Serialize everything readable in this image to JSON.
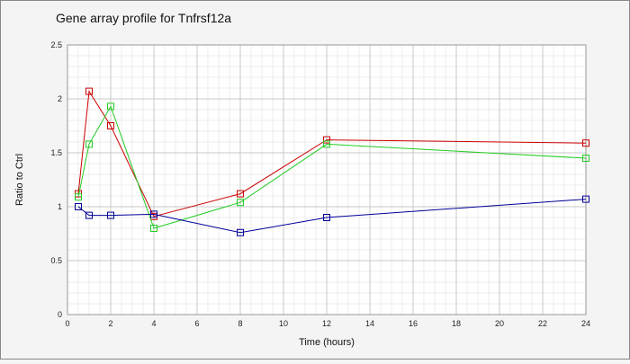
{
  "chart_data": {
    "type": "line",
    "title": "Gene array profile for Tnfrsf12a",
    "xlabel": "Time (hours)",
    "ylabel": "Ratio to Ctrl",
    "xlim": [
      0,
      24
    ],
    "ylim": [
      0,
      2.5
    ],
    "xticks": [
      0,
      2,
      4,
      6,
      8,
      10,
      12,
      14,
      16,
      18,
      20,
      22,
      24
    ],
    "yticks": [
      0,
      0.5,
      1,
      1.5,
      2,
      2.5
    ],
    "grid": true,
    "legend": "none",
    "series": [
      {
        "color": "#cc0000",
        "points": [
          [
            0.5,
            1.12
          ],
          [
            1,
            2.07
          ],
          [
            2,
            1.75
          ],
          [
            4,
            0.91
          ],
          [
            8,
            1.12
          ],
          [
            12,
            1.62
          ],
          [
            24,
            1.59
          ]
        ]
      },
      {
        "color": "#22cc22",
        "points": [
          [
            0.5,
            1.09
          ],
          [
            1,
            1.58
          ],
          [
            2,
            1.93
          ],
          [
            4,
            0.8
          ],
          [
            8,
            1.04
          ],
          [
            12,
            1.58
          ],
          [
            24,
            1.45
          ]
        ]
      },
      {
        "color": "#000099",
        "points": [
          [
            0.5,
            1.0
          ],
          [
            1,
            0.92
          ],
          [
            2,
            0.92
          ],
          [
            4,
            0.93
          ],
          [
            8,
            0.76
          ],
          [
            12,
            0.9
          ],
          [
            24,
            1.07
          ]
        ]
      }
    ]
  }
}
